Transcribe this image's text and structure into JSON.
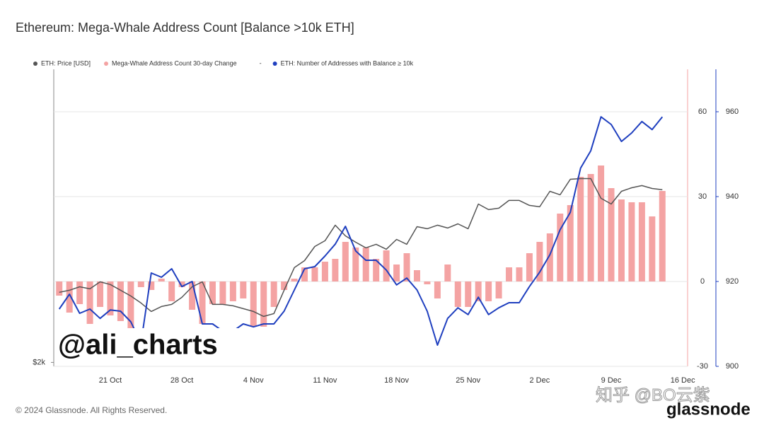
{
  "chart_data": {
    "type": "combo",
    "title": "Ethereum: Mega-Whale Address Count [Balance >10k ETH]",
    "legend_separator": "-",
    "categories": [
      null,
      null,
      null,
      null,
      null,
      "21 Oct",
      null,
      null,
      null,
      null,
      null,
      null,
      "28 Oct",
      null,
      null,
      null,
      null,
      null,
      null,
      "4 Nov",
      null,
      null,
      null,
      null,
      null,
      null,
      "11 Nov",
      null,
      null,
      null,
      null,
      null,
      null,
      "18 Nov",
      null,
      null,
      null,
      null,
      null,
      null,
      "25 Nov",
      null,
      null,
      null,
      null,
      null,
      null,
      "2 Dec",
      null,
      null,
      null,
      null,
      null,
      null,
      "9 Dec",
      null,
      null,
      null,
      null,
      null,
      null,
      "16 Dec"
    ],
    "ylim": [
      1970,
      6130
    ],
    "ylog": true,
    "yticks": [
      {
        "value": 2000,
        "label": "$2k"
      }
    ],
    "y2lim": [
      -30,
      75
    ],
    "y2ticks": [
      -30,
      0,
      30,
      60
    ],
    "y3lim": [
      900,
      970
    ],
    "y3ticks": [
      900,
      920,
      940,
      960
    ],
    "grid": true,
    "series": [
      {
        "name": "ETH: Price [USD]",
        "type": "line",
        "axis": "y",
        "color": "#555555",
        "values": [
          2614,
          2635,
          2670,
          2649,
          2721,
          2693,
          2635,
          2578,
          2510,
          2430,
          2476,
          2496,
          2565,
          2670,
          2721,
          2496,
          2496,
          2483,
          2456,
          2430,
          2384,
          2410,
          2635,
          2873,
          2951,
          3115,
          3184,
          3379,
          3244,
          3166,
          3099,
          3141,
          3082,
          3200,
          3141,
          3360,
          3333,
          3379,
          3342,
          3396,
          3333,
          3663,
          3586,
          3605,
          3714,
          3714,
          3644,
          3625,
          3846,
          3795,
          4027,
          4038,
          4038,
          3744,
          3663,
          3846,
          3898,
          3931,
          3888,
          3870,
          null,
          null
        ]
      },
      {
        "name": "Mega-Whale Address Count 30-day Change",
        "type": "bar",
        "axis": "y2",
        "color": "#f4a3a3",
        "values": [
          -5,
          -11,
          -8,
          -15,
          -9,
          -12,
          -14,
          -22,
          -2,
          -3,
          1,
          -7,
          -2,
          -10,
          -15,
          -8,
          -8,
          -7,
          -6,
          -16,
          -16,
          -9,
          -3,
          1,
          5,
          5,
          7,
          8,
          14,
          12,
          12,
          8,
          11,
          6,
          10,
          4,
          -1,
          -6,
          6,
          -9,
          -9,
          -7,
          -7,
          -6,
          5,
          5,
          10,
          14,
          17,
          24,
          27,
          37,
          38,
          41,
          33,
          29,
          28,
          28,
          23,
          32,
          null,
          null
        ]
      },
      {
        "name": "ETH: Number of Addresses with Balance ≥ 10k",
        "type": "line",
        "axis": "y3",
        "color": "#1f3fbf",
        "values": [
          913.5,
          917,
          912.5,
          913.5,
          911.3,
          913.3,
          913,
          910.5,
          905.5,
          922,
          921,
          923,
          918.8,
          920,
          910,
          910,
          908.3,
          908.3,
          910,
          909.3,
          910,
          910,
          913,
          918,
          923,
          923.5,
          926,
          928.8,
          933,
          927.2,
          925,
          925,
          922.7,
          919.2,
          920.8,
          918,
          913,
          905,
          911.3,
          913.8,
          912.2,
          916.3,
          912.2,
          913.8,
          915,
          915,
          918.8,
          922.2,
          926.3,
          932.2,
          936.3,
          946.7,
          950.8,
          958.8,
          957,
          953,
          955,
          957.7,
          955.8,
          958.8,
          null,
          null
        ]
      }
    ],
    "watermark": "@ali_charts",
    "source_watermark": "知乎 @BO云紫",
    "brand": "glassnode",
    "footer": "© 2024 Glassnode. All Rights Reserved."
  }
}
